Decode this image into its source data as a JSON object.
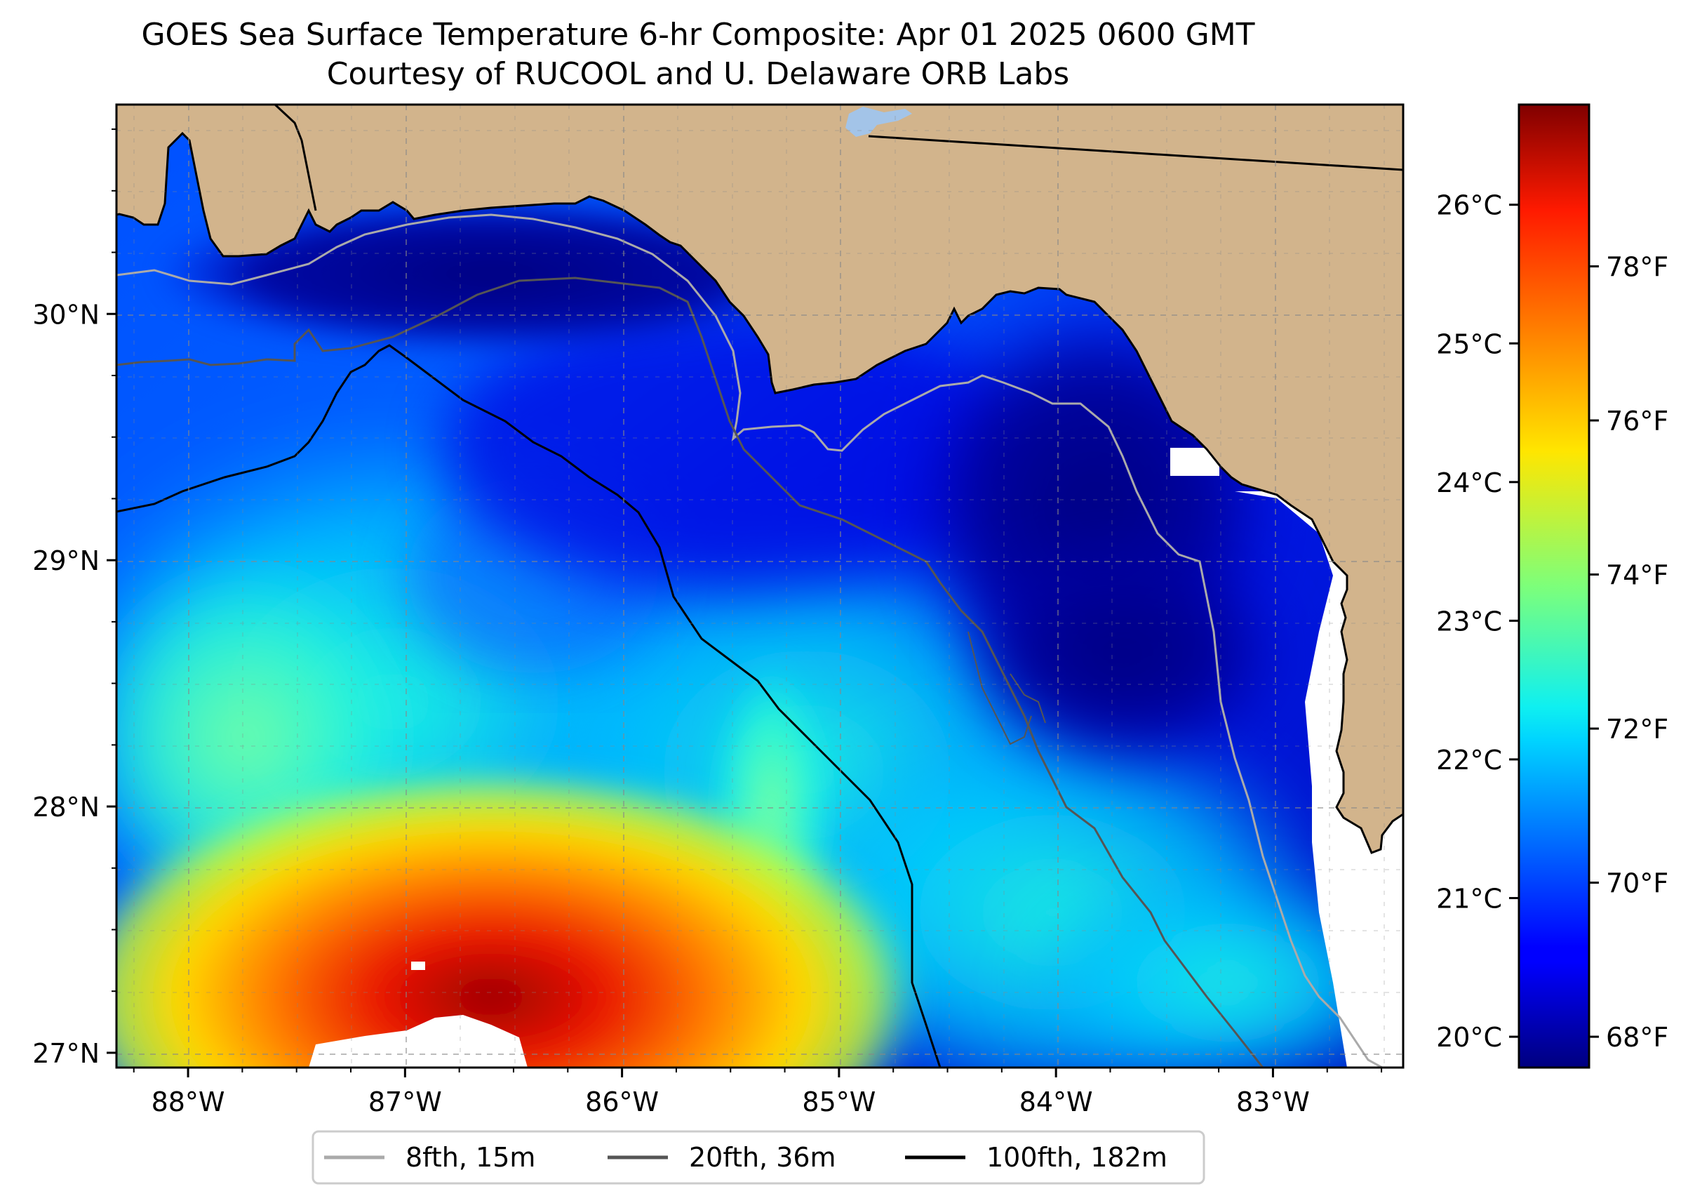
{
  "title": {
    "line1": "GOES Sea Surface Temperature 6-hr Composite: Apr 01 2025 0600 GMT",
    "line2": "Courtesy of RUCOOL and U. Delaware ORB Labs"
  },
  "map": {
    "lon_range": [
      -88.33,
      -82.4
    ],
    "lat_range": [
      26.94,
      30.85
    ],
    "lon_ticks": [
      {
        "value": -88,
        "label": "88°W"
      },
      {
        "value": -87,
        "label": "87°W"
      },
      {
        "value": -86,
        "label": "86°W"
      },
      {
        "value": -85,
        "label": "85°W"
      },
      {
        "value": -84,
        "label": "84°W"
      },
      {
        "value": -83,
        "label": "83°W"
      }
    ],
    "lat_ticks": [
      {
        "value": 27,
        "label": "27°N"
      },
      {
        "value": 28,
        "label": "28°N"
      },
      {
        "value": 29,
        "label": "29°N"
      },
      {
        "value": 30,
        "label": "30°N"
      }
    ],
    "gridlines": true,
    "land_color": "#d2b48c",
    "no_data_color": "#ffffff"
  },
  "colorbar": {
    "colormap": "jet",
    "range_f": [
      67.6,
      80.1
    ],
    "celsius_ticks": [
      {
        "value": 20,
        "label": "20°C"
      },
      {
        "value": 21,
        "label": "21°C"
      },
      {
        "value": 22,
        "label": "22°C"
      },
      {
        "value": 23,
        "label": "23°C"
      },
      {
        "value": 24,
        "label": "24°C"
      },
      {
        "value": 25,
        "label": "25°C"
      },
      {
        "value": 26,
        "label": "26°C"
      }
    ],
    "fahrenheit_ticks": [
      {
        "value": 68,
        "label": "68°F"
      },
      {
        "value": 70,
        "label": "70°F"
      },
      {
        "value": 72,
        "label": "72°F"
      },
      {
        "value": 74,
        "label": "74°F"
      },
      {
        "value": 76,
        "label": "76°F"
      },
      {
        "value": 78,
        "label": "78°F"
      }
    ]
  },
  "legend": {
    "entries": [
      {
        "label": "8fth, 15m",
        "color": "#aaaaaa"
      },
      {
        "label": "20fth, 36m",
        "color": "#555555"
      },
      {
        "label": "100fth, 182m",
        "color": "#000000"
      }
    ]
  }
}
